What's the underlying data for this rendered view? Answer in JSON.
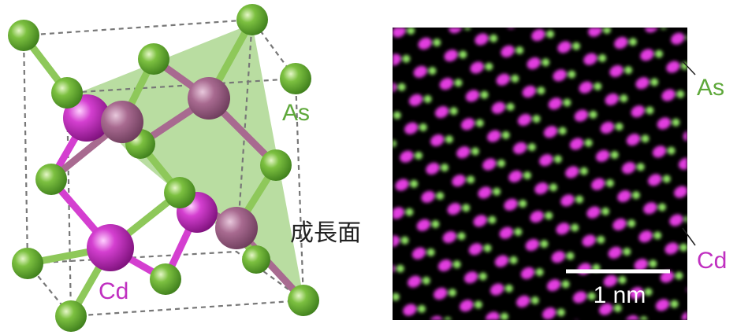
{
  "structure": {
    "label_as": "As",
    "label_cd": "Cd",
    "label_plane": "成長面"
  },
  "image": {
    "label_as": "As",
    "label_cd": "Cd",
    "scale_bar": "1 nm"
  }
}
